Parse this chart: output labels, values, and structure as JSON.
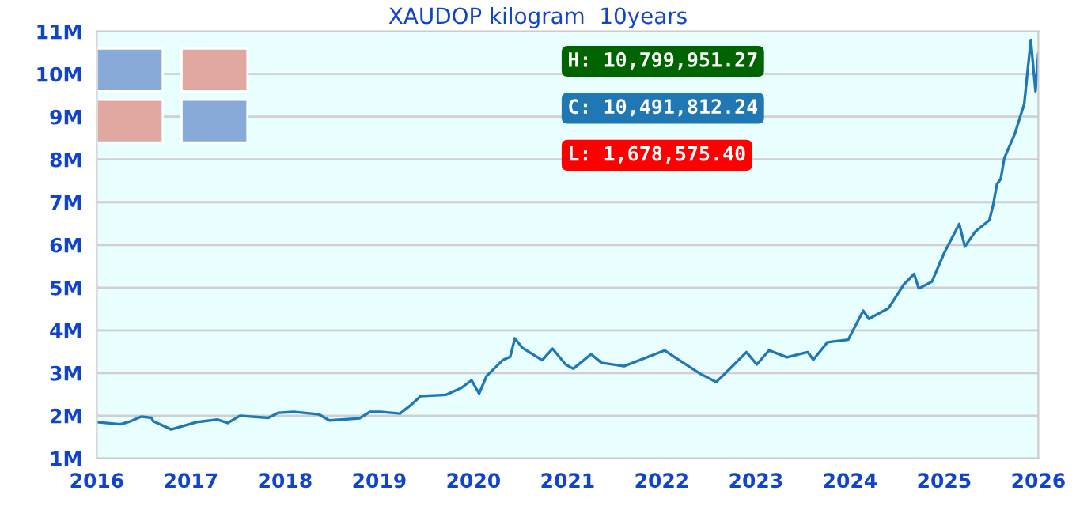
{
  "chart_data": {
    "type": "line",
    "title": "XAUDOP kilogram  10years",
    "x": [
      2016.0,
      2016.25,
      2016.36,
      2016.47,
      2016.58,
      2016.6,
      2016.79,
      2017.06,
      2017.28,
      2017.39,
      2017.52,
      2017.82,
      2017.93,
      2018.09,
      2018.36,
      2018.47,
      2018.79,
      2018.9,
      2019.01,
      2019.22,
      2019.33,
      2019.44,
      2019.71,
      2019.87,
      2019.98,
      2020.06,
      2020.14,
      2020.31,
      2020.39,
      2020.44,
      2020.52,
      2020.73,
      2020.84,
      2020.98,
      2021.06,
      2021.25,
      2021.36,
      2021.6,
      2022.03,
      2022.14,
      2022.41,
      2022.58,
      2022.71,
      2022.9,
      2023.01,
      2023.14,
      2023.33,
      2023.55,
      2023.61,
      2023.76,
      2023.98,
      2024.14,
      2024.2,
      2024.41,
      2024.57,
      2024.68,
      2024.73,
      2024.87,
      2025.0,
      2025.16,
      2025.22,
      2025.33,
      2025.48,
      2025.52,
      2025.56,
      2025.6,
      2025.64,
      2025.75,
      2025.85,
      2025.92,
      2025.97,
      2026.0
    ],
    "series": [
      {
        "color": "#1f77b4",
        "values": [
          1.85,
          1.8,
          1.87,
          1.98,
          1.95,
          1.87,
          1.68,
          1.85,
          1.91,
          1.83,
          2.0,
          1.95,
          2.07,
          2.09,
          2.03,
          1.89,
          1.94,
          2.09,
          2.09,
          2.05,
          2.24,
          2.46,
          2.49,
          2.65,
          2.83,
          2.52,
          2.93,
          3.3,
          3.38,
          3.81,
          3.59,
          3.3,
          3.57,
          3.2,
          3.1,
          3.44,
          3.24,
          3.16,
          3.53,
          3.37,
          2.98,
          2.79,
          3.07,
          3.49,
          3.2,
          3.53,
          3.37,
          3.49,
          3.31,
          3.72,
          3.78,
          4.46,
          4.27,
          4.52,
          5.07,
          5.32,
          4.98,
          5.14,
          5.81,
          6.49,
          5.96,
          6.31,
          6.58,
          6.93,
          7.42,
          7.54,
          8.04,
          8.6,
          9.3,
          10.8,
          9.6,
          10.49
        ]
      }
    ],
    "xlim": [
      2016,
      2026
    ],
    "xticks": [
      2016,
      2017,
      2018,
      2019,
      2020,
      2021,
      2022,
      2023,
      2024,
      2025,
      2026
    ],
    "ylim": [
      1,
      11
    ],
    "yticks": [
      {
        "value": 1,
        "label": "1M"
      },
      {
        "value": 2,
        "label": "2M"
      },
      {
        "value": 3,
        "label": "3M"
      },
      {
        "value": 4,
        "label": "4M"
      },
      {
        "value": 5,
        "label": "5M"
      },
      {
        "value": 6,
        "label": "6M"
      },
      {
        "value": 7,
        "label": "7M"
      },
      {
        "value": 8,
        "label": "8M"
      },
      {
        "value": 9,
        "label": "9M"
      },
      {
        "value": 10,
        "label": "10M"
      },
      {
        "value": 11,
        "label": "11M"
      }
    ],
    "grid": "y",
    "annotations": [
      "H: 10,799,951.27",
      "C: 10,491,812.24",
      "L: 1,678,575.40"
    ]
  }
}
